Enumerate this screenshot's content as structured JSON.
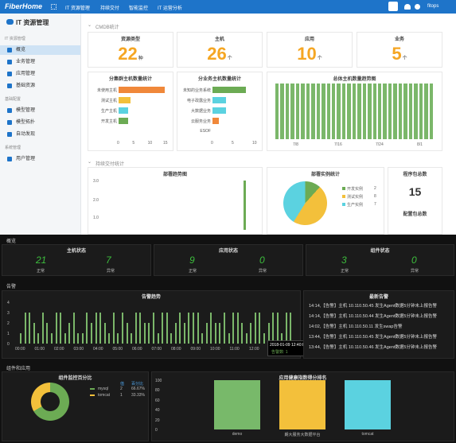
{
  "nav": {
    "logo": "FiberHome",
    "items": [
      "IT 资源管理",
      "持续交付",
      "智能监控",
      "IT 运营分析"
    ],
    "user": "fitops"
  },
  "sidebar": {
    "title": "IT 资源管理",
    "sections": [
      {
        "label": "IT 资源管理",
        "items": [
          "概览",
          "业务管理",
          "应用管理",
          "基础资源"
        ]
      },
      {
        "label": "基础配置",
        "items": [
          "模型管理",
          "模型拓扑",
          "自动发现"
        ]
      },
      {
        "label": "系统管理",
        "items": [
          "用户管理"
        ]
      }
    ]
  },
  "cmdb": {
    "section": "CMDB统计",
    "cards": [
      {
        "title": "资源类型",
        "value": "22",
        "unit": "种"
      },
      {
        "title": "主机",
        "value": "26",
        "unit": "个"
      },
      {
        "title": "应用",
        "value": "10",
        "unit": "个"
      },
      {
        "title": "业务",
        "value": "5",
        "unit": "个"
      }
    ],
    "cluster": {
      "title": "分集群主机数量统计",
      "labels": [
        "未使用主机",
        "测试主机",
        "生产主机",
        "开发主机"
      ],
      "values": [
        15,
        4,
        3,
        3
      ],
      "colors": [
        "#f0883a",
        "#f3c03b",
        "#5bd2e0",
        "#6cab54"
      ],
      "ticks": [
        "0",
        "5",
        "10",
        "15"
      ]
    },
    "business": {
      "title": "分业务主机数量统计",
      "labels": [
        "未知的业务系统",
        "电子政露业务",
        "大数据业务",
        "云服务业务",
        "ESOF"
      ],
      "values": [
        8,
        3.3,
        3.3,
        1.5,
        0
      ],
      "colors": [
        "#6cab54",
        "#5bd2e0",
        "#5bd2e0",
        "#f0883a",
        "#6cab54"
      ],
      "ticks": [
        "0",
        "5",
        "10"
      ]
    },
    "trend": {
      "title": "总体主机数量趋势图",
      "values": [
        26,
        26,
        26,
        26,
        26,
        26,
        26,
        26,
        26,
        26,
        26,
        26,
        26,
        26,
        26,
        26,
        26,
        26,
        26,
        26,
        26,
        26,
        26,
        26,
        26,
        26,
        26,
        26,
        26,
        26,
        26
      ],
      "xticks": [
        "7/8",
        "7/16",
        "7/24",
        "8/1"
      ]
    }
  },
  "cd": {
    "section": "持续交付统计",
    "deploy": {
      "title": "部署趋势图",
      "yticks": [
        "3.0",
        "2.0",
        "1.0"
      ]
    },
    "instances": {
      "title": "部署实例统计",
      "legend": [
        {
          "name": "开发实例",
          "value": "2",
          "color": "#6cab54"
        },
        {
          "name": "测试实例",
          "value": "8",
          "color": "#f3c03b"
        },
        {
          "name": "生产实例",
          "value": "7",
          "color": "#5bd2e0"
        }
      ]
    },
    "pkg": {
      "title": "程序包总数",
      "value": "15",
      "title2": "配置包总数"
    }
  },
  "dash": {
    "overview": "概览",
    "host_status": {
      "title": "主机状态",
      "normal": "21",
      "abnormal": "7",
      "nl": "正常",
      "al": "异常"
    },
    "app_status": {
      "title": "应用状态",
      "normal": "9",
      "abnormal": "0",
      "nl": "正常",
      "al": "异常"
    },
    "comp_status": {
      "title": "组件状态",
      "normal": "3",
      "abnormal": "0",
      "nl": "正常",
      "al": "异常"
    },
    "alarm_sec": "告警",
    "alarm_trend": {
      "title": "告警趋势",
      "yticks": [
        "4",
        "3",
        "2",
        "1",
        "0"
      ],
      "xticks": [
        "00:00",
        "01:00",
        "02:00",
        "03:00",
        "04:00",
        "05:00",
        "06:00",
        "07:00",
        "08:00",
        "09:00",
        "10:00",
        "11:00",
        "12:00",
        "13:00"
      ],
      "values": [
        1,
        3,
        3,
        2,
        1,
        3,
        2,
        1,
        3,
        3,
        1,
        2,
        3,
        1,
        1,
        3,
        2,
        3,
        3,
        2,
        1,
        3,
        1,
        3,
        2,
        1,
        3,
        3,
        2,
        2,
        3,
        1,
        3,
        3,
        1,
        2,
        3,
        2,
        3,
        3,
        3,
        1,
        2,
        3,
        2,
        2,
        3,
        1,
        3,
        3,
        2,
        1,
        2,
        3,
        3,
        1,
        2,
        3,
        3,
        1,
        3,
        3
      ],
      "tooltip": "2018-01-09 12:40:00",
      "tooltip2": "告警数: 1"
    },
    "latest": {
      "title": "最新告警",
      "rows": [
        "14:14,【告警】主机 10.110.50.45 发生Agent数据5分钟未上报告警",
        "14:14,【告警】主机 10.110.50.44 发生Agent数据5分钟未上报告警",
        "14:02,【告警】主机 10.110.50.11 发生swap告警",
        "13:44,【告警】主机 10.110.50.45 发生Agent数据5分钟未上报告警",
        "13:44,【告警】主机 10.110.50.46 发生Agent数据5分钟未上报告警"
      ]
    },
    "comp_sec": "组件和应用",
    "pie": {
      "title": "组件监控百分比",
      "legend": [
        {
          "name": "mysql",
          "count": "2",
          "pct": "66.67%",
          "color": "#6cab54"
        },
        {
          "name": "tomcat",
          "count": "1",
          "pct": "33.33%",
          "color": "#f3c03b"
        }
      ],
      "h1": "值",
      "h2": "百分比"
    },
    "health": {
      "title": "应用健康指数得分排名",
      "yticks": [
        "100",
        "80",
        "60",
        "40",
        "20",
        "0"
      ],
      "categories": [
        "demo",
        "朗大服务大数据平台",
        "tomcat"
      ],
      "values": [
        100,
        100,
        100
      ],
      "colors": [
        "#78b96a",
        "#f3c03b",
        "#5bd2e0"
      ]
    }
  }
}
